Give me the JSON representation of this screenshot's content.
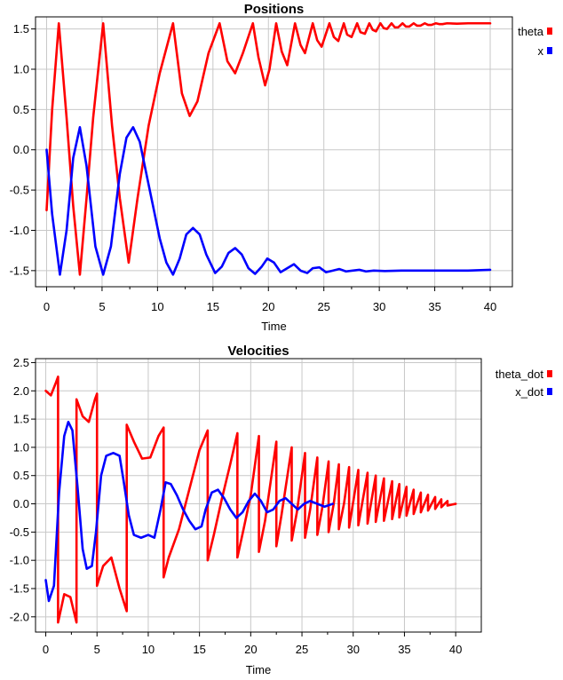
{
  "chart_data": [
    {
      "type": "line",
      "title": "Positions",
      "xlabel": "Time",
      "ylabel": "",
      "xlim": [
        -1,
        42
      ],
      "ylim": [
        -1.7,
        1.65
      ],
      "xticks": [
        "0",
        "5",
        "10",
        "15",
        "20",
        "25",
        "30",
        "35",
        "40"
      ],
      "yticks": [
        "-1.5",
        "-1.0",
        "-0.5",
        "0.0",
        "0.5",
        "1.0",
        "1.5"
      ],
      "grid": true,
      "legend_position": "right",
      "series": [
        {
          "name": "theta",
          "color": "#ff0000",
          "points": [
            [
              0,
              -0.75
            ],
            [
              0.5,
              0.5
            ],
            [
              1.1,
              1.57
            ],
            [
              1.8,
              0.4
            ],
            [
              2.4,
              -0.7
            ],
            [
              3.0,
              -1.55
            ],
            [
              3.6,
              -0.6
            ],
            [
              4.2,
              0.4
            ],
            [
              5.1,
              1.57
            ],
            [
              5.9,
              0.3
            ],
            [
              6.6,
              -0.6
            ],
            [
              7.4,
              -1.4
            ],
            [
              8.2,
              -0.6
            ],
            [
              9.2,
              0.3
            ],
            [
              10.2,
              0.95
            ],
            [
              11.4,
              1.57
            ],
            [
              12.2,
              0.7
            ],
            [
              12.9,
              0.42
            ],
            [
              13.6,
              0.6
            ],
            [
              14.6,
              1.2
            ],
            [
              15.6,
              1.57
            ],
            [
              16.3,
              1.1
            ],
            [
              17.0,
              0.95
            ],
            [
              17.7,
              1.2
            ],
            [
              18.6,
              1.57
            ],
            [
              19.1,
              1.15
            ],
            [
              19.7,
              0.8
            ],
            [
              20.1,
              1.0
            ],
            [
              20.7,
              1.57
            ],
            [
              21.2,
              1.22
            ],
            [
              21.7,
              1.05
            ],
            [
              22.4,
              1.57
            ],
            [
              22.9,
              1.3
            ],
            [
              23.3,
              1.2
            ],
            [
              24.0,
              1.57
            ],
            [
              24.4,
              1.36
            ],
            [
              24.8,
              1.28
            ],
            [
              25.5,
              1.57
            ],
            [
              25.9,
              1.4
            ],
            [
              26.3,
              1.35
            ],
            [
              26.8,
              1.57
            ],
            [
              27.1,
              1.43
            ],
            [
              27.5,
              1.4
            ],
            [
              28.0,
              1.57
            ],
            [
              28.3,
              1.46
            ],
            [
              28.7,
              1.44
            ],
            [
              29.1,
              1.57
            ],
            [
              29.4,
              1.49
            ],
            [
              29.7,
              1.47
            ],
            [
              30.1,
              1.57
            ],
            [
              30.4,
              1.51
            ],
            [
              30.7,
              1.5
            ],
            [
              31.1,
              1.57
            ],
            [
              31.4,
              1.52
            ],
            [
              31.7,
              1.52
            ],
            [
              32.1,
              1.57
            ],
            [
              32.4,
              1.53
            ],
            [
              32.7,
              1.53
            ],
            [
              33.1,
              1.57
            ],
            [
              33.4,
              1.54
            ],
            [
              33.7,
              1.54
            ],
            [
              34.1,
              1.57
            ],
            [
              34.4,
              1.55
            ],
            [
              34.7,
              1.55
            ],
            [
              35.1,
              1.57
            ],
            [
              35.4,
              1.56
            ],
            [
              35.7,
              1.56
            ],
            [
              36.1,
              1.57
            ],
            [
              37.0,
              1.565
            ],
            [
              38.0,
              1.57
            ],
            [
              40.0,
              1.57
            ]
          ]
        },
        {
          "name": "x",
          "color": "#0000ff",
          "points": [
            [
              0,
              0.0
            ],
            [
              0.5,
              -0.8
            ],
            [
              1.2,
              -1.55
            ],
            [
              1.8,
              -1.0
            ],
            [
              2.4,
              -0.1
            ],
            [
              3.0,
              0.28
            ],
            [
              3.6,
              -0.2
            ],
            [
              4.4,
              -1.2
            ],
            [
              5.1,
              -1.55
            ],
            [
              5.8,
              -1.2
            ],
            [
              6.6,
              -0.3
            ],
            [
              7.2,
              0.15
            ],
            [
              7.8,
              0.28
            ],
            [
              8.4,
              0.1
            ],
            [
              9.0,
              -0.3
            ],
            [
              9.6,
              -0.7
            ],
            [
              10.2,
              -1.1
            ],
            [
              10.8,
              -1.4
            ],
            [
              11.4,
              -1.55
            ],
            [
              12.0,
              -1.35
            ],
            [
              12.6,
              -1.05
            ],
            [
              13.2,
              -0.97
            ],
            [
              13.8,
              -1.05
            ],
            [
              14.4,
              -1.3
            ],
            [
              15.2,
              -1.53
            ],
            [
              15.8,
              -1.45
            ],
            [
              16.4,
              -1.28
            ],
            [
              17.0,
              -1.22
            ],
            [
              17.6,
              -1.3
            ],
            [
              18.2,
              -1.47
            ],
            [
              18.8,
              -1.54
            ],
            [
              19.4,
              -1.45
            ],
            [
              19.9,
              -1.35
            ],
            [
              20.5,
              -1.4
            ],
            [
              21.1,
              -1.52
            ],
            [
              21.7,
              -1.47
            ],
            [
              22.3,
              -1.42
            ],
            [
              22.9,
              -1.5
            ],
            [
              23.5,
              -1.53
            ],
            [
              24.0,
              -1.47
            ],
            [
              24.6,
              -1.46
            ],
            [
              25.2,
              -1.52
            ],
            [
              25.8,
              -1.5
            ],
            [
              26.4,
              -1.48
            ],
            [
              27.0,
              -1.51
            ],
            [
              27.6,
              -1.5
            ],
            [
              28.2,
              -1.49
            ],
            [
              28.8,
              -1.51
            ],
            [
              29.5,
              -1.5
            ],
            [
              30.5,
              -1.505
            ],
            [
              32.0,
              -1.5
            ],
            [
              35.0,
              -1.5
            ],
            [
              38.0,
              -1.5
            ],
            [
              40.0,
              -1.49
            ]
          ]
        }
      ]
    },
    {
      "type": "line",
      "title": "Velocities",
      "xlabel": "Time",
      "ylabel": "",
      "xlim": [
        -1,
        42.5
      ],
      "ylim": [
        -2.27,
        2.57
      ],
      "xticks": [
        "0",
        "5",
        "10",
        "15",
        "20",
        "25",
        "30",
        "35",
        "40"
      ],
      "yticks": [
        "-2.0",
        "-1.5",
        "-1.0",
        "-0.5",
        "0.0",
        "0.5",
        "1.0",
        "1.5",
        "2.0",
        "2.5"
      ],
      "grid": true,
      "legend_position": "right",
      "series": [
        {
          "name": "theta_dot",
          "color": "#ff0000",
          "points": [
            [
              0,
              2.0
            ],
            [
              0.5,
              1.92
            ],
            [
              1.0,
              2.15
            ],
            [
              1.2,
              2.25
            ],
            [
              1.2,
              -2.1
            ],
            [
              1.8,
              -1.6
            ],
            [
              2.4,
              -1.65
            ],
            [
              3.0,
              -2.1
            ],
            [
              3.0,
              1.85
            ],
            [
              3.6,
              1.55
            ],
            [
              4.2,
              1.45
            ],
            [
              4.8,
              1.85
            ],
            [
              5.0,
              1.95
            ],
            [
              5.0,
              -1.45
            ],
            [
              5.6,
              -1.1
            ],
            [
              6.4,
              -0.95
            ],
            [
              7.2,
              -1.5
            ],
            [
              7.9,
              -1.9
            ],
            [
              7.9,
              1.4
            ],
            [
              8.6,
              1.1
            ],
            [
              9.4,
              0.8
            ],
            [
              10.2,
              0.82
            ],
            [
              11.0,
              1.2
            ],
            [
              11.5,
              1.35
            ],
            [
              11.5,
              -1.3
            ],
            [
              12.0,
              -0.95
            ],
            [
              13.0,
              -0.45
            ],
            [
              14.0,
              0.25
            ],
            [
              15.0,
              0.95
            ],
            [
              15.8,
              1.3
            ],
            [
              15.8,
              -1.0
            ],
            [
              16.4,
              -0.55
            ],
            [
              17.2,
              0.1
            ],
            [
              18.0,
              0.7
            ],
            [
              18.7,
              1.25
            ],
            [
              18.7,
              -0.95
            ],
            [
              19.3,
              -0.45
            ],
            [
              20.0,
              0.15
            ],
            [
              20.8,
              1.2
            ],
            [
              20.8,
              -0.85
            ],
            [
              21.4,
              -0.3
            ],
            [
              22.5,
              1.1
            ],
            [
              22.5,
              -0.75
            ],
            [
              23.0,
              -0.2
            ],
            [
              24.0,
              1.0
            ],
            [
              24.0,
              -0.65
            ],
            [
              24.5,
              -0.15
            ],
            [
              25.3,
              0.9
            ],
            [
              25.3,
              -0.6
            ],
            [
              25.8,
              -0.1
            ],
            [
              26.5,
              0.82
            ],
            [
              26.5,
              -0.55
            ],
            [
              27.0,
              -0.05
            ],
            [
              27.6,
              0.75
            ],
            [
              27.6,
              -0.5
            ],
            [
              28.1,
              0.0
            ],
            [
              28.6,
              0.7
            ],
            [
              28.6,
              -0.45
            ],
            [
              29.1,
              0.0
            ],
            [
              29.6,
              0.65
            ],
            [
              29.6,
              -0.42
            ],
            [
              30.5,
              0.6
            ],
            [
              30.5,
              -0.38
            ],
            [
              31.4,
              0.55
            ],
            [
              31.4,
              -0.35
            ],
            [
              32.2,
              0.5
            ],
            [
              32.2,
              -0.32
            ],
            [
              33.0,
              0.45
            ],
            [
              33.0,
              -0.3
            ],
            [
              33.8,
              0.4
            ],
            [
              33.8,
              -0.27
            ],
            [
              34.5,
              0.35
            ],
            [
              34.5,
              -0.24
            ],
            [
              35.2,
              0.3
            ],
            [
              35.2,
              -0.21
            ],
            [
              35.9,
              0.25
            ],
            [
              35.9,
              -0.18
            ],
            [
              36.6,
              0.2
            ],
            [
              36.6,
              -0.15
            ],
            [
              37.3,
              0.16
            ],
            [
              37.3,
              -0.12
            ],
            [
              38.0,
              0.12
            ],
            [
              38.0,
              -0.09
            ],
            [
              38.6,
              0.08
            ],
            [
              38.6,
              -0.06
            ],
            [
              39.2,
              0.05
            ],
            [
              39.2,
              -0.03
            ],
            [
              40.0,
              0.0
            ]
          ]
        },
        {
          "name": "x_dot",
          "color": "#0000ff",
          "points": [
            [
              0,
              -1.35
            ],
            [
              0.3,
              -1.72
            ],
            [
              0.8,
              -1.45
            ],
            [
              1.3,
              0.2
            ],
            [
              1.8,
              1.2
            ],
            [
              2.2,
              1.45
            ],
            [
              2.6,
              1.3
            ],
            [
              3.1,
              0.3
            ],
            [
              3.6,
              -0.8
            ],
            [
              4.0,
              -1.15
            ],
            [
              4.5,
              -1.1
            ],
            [
              4.9,
              -0.5
            ],
            [
              5.4,
              0.5
            ],
            [
              5.9,
              0.85
            ],
            [
              6.6,
              0.9
            ],
            [
              7.2,
              0.85
            ],
            [
              7.6,
              0.4
            ],
            [
              8.1,
              -0.2
            ],
            [
              8.6,
              -0.55
            ],
            [
              9.3,
              -0.6
            ],
            [
              10.0,
              -0.55
            ],
            [
              10.6,
              -0.6
            ],
            [
              11.2,
              -0.1
            ],
            [
              11.7,
              0.38
            ],
            [
              12.2,
              0.35
            ],
            [
              12.8,
              0.15
            ],
            [
              13.4,
              -0.1
            ],
            [
              14.0,
              -0.3
            ],
            [
              14.6,
              -0.45
            ],
            [
              15.2,
              -0.4
            ],
            [
              15.6,
              -0.1
            ],
            [
              16.2,
              0.2
            ],
            [
              16.8,
              0.25
            ],
            [
              17.4,
              0.1
            ],
            [
              18.0,
              -0.1
            ],
            [
              18.6,
              -0.25
            ],
            [
              19.2,
              -0.15
            ],
            [
              19.8,
              0.05
            ],
            [
              20.4,
              0.18
            ],
            [
              21.0,
              0.05
            ],
            [
              21.6,
              -0.15
            ],
            [
              22.2,
              -0.1
            ],
            [
              22.8,
              0.05
            ],
            [
              23.4,
              0.1
            ],
            [
              24.0,
              0.0
            ],
            [
              24.6,
              -0.1
            ],
            [
              25.2,
              0.0
            ],
            [
              25.8,
              0.05
            ],
            [
              26.5,
              0.0
            ],
            [
              27.2,
              -0.05
            ],
            [
              28.0,
              0.0
            ]
          ]
        }
      ]
    }
  ]
}
